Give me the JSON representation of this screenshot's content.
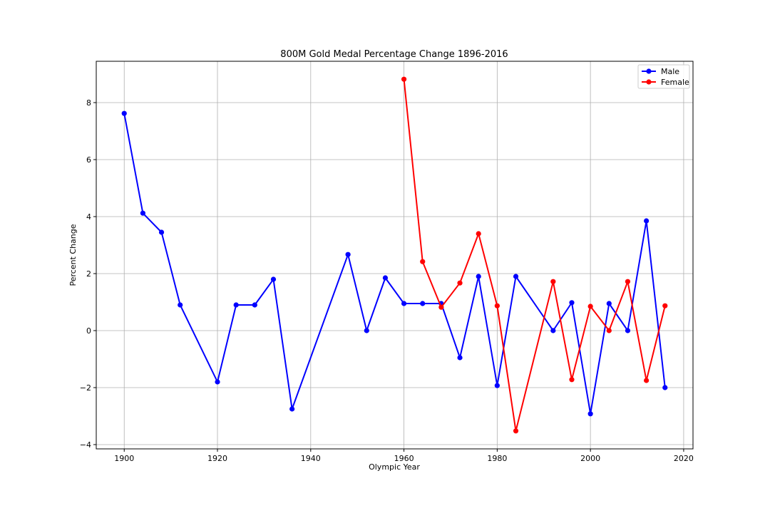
{
  "chart_data": {
    "type": "line",
    "title": "800M Gold Medal Percentage Change 1896-2016",
    "xlabel": "Olympic Year",
    "ylabel": "Percent Change",
    "xlim": [
      1894,
      2022
    ],
    "ylim": [
      -4.15,
      9.45
    ],
    "xticks": [
      1900,
      1920,
      1940,
      1960,
      1980,
      2000,
      2020
    ],
    "yticks": [
      -4,
      -2,
      0,
      2,
      4,
      6,
      8
    ],
    "grid": true,
    "legend": "top-right",
    "series": [
      {
        "name": "Male",
        "color": "#0000ff",
        "x": [
          1900,
          1904,
          1908,
          1912,
          1920,
          1924,
          1928,
          1932,
          1936,
          1948,
          1952,
          1956,
          1960,
          1964,
          1968,
          1972,
          1976,
          1980,
          1984,
          1992,
          1996,
          2000,
          2004,
          2008,
          2012,
          2016
        ],
        "y": [
          7.62,
          4.12,
          3.45,
          0.9,
          -1.8,
          0.9,
          0.9,
          1.8,
          -2.75,
          2.67,
          0.0,
          1.85,
          0.95,
          0.95,
          0.95,
          -0.95,
          1.9,
          -1.93,
          1.9,
          0.0,
          0.98,
          -2.92,
          0.95,
          0.0,
          3.85,
          -2.0
        ]
      },
      {
        "name": "Female",
        "color": "#ff0000",
        "x": [
          1960,
          1964,
          1968,
          1972,
          1976,
          1980,
          1984,
          1992,
          1996,
          2000,
          2004,
          2008,
          2012,
          2016
        ],
        "y": [
          8.82,
          2.42,
          0.82,
          1.67,
          3.4,
          0.87,
          -3.52,
          1.72,
          -1.72,
          0.85,
          0.0,
          1.72,
          -1.75,
          0.87
        ]
      }
    ]
  }
}
